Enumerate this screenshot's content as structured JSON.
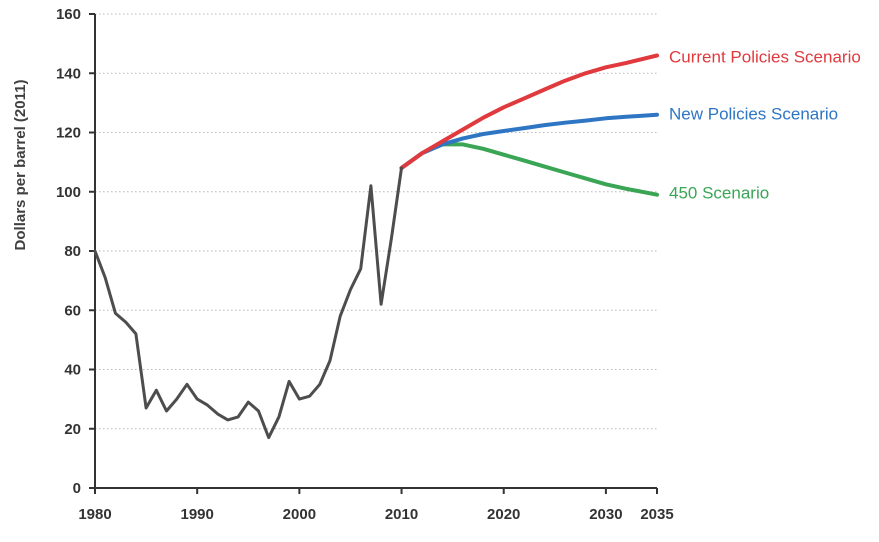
{
  "chart_data": {
    "type": "line",
    "title": "",
    "xlabel": "",
    "ylabel": "Dollars per barrel (2011)",
    "xlim": [
      1980,
      2035
    ],
    "ylim": [
      0,
      160
    ],
    "x_ticks": [
      "1980",
      "1990",
      "2000",
      "2010",
      "2020",
      "2030",
      "2035"
    ],
    "x_tick_values": [
      1980,
      1990,
      2000,
      2010,
      2020,
      2030,
      2035
    ],
    "y_ticks": [
      "0",
      "20",
      "40",
      "60",
      "80",
      "100",
      "120",
      "140",
      "160"
    ],
    "y_tick_values": [
      0,
      20,
      40,
      60,
      80,
      100,
      120,
      140,
      160
    ],
    "grid": true,
    "series": [
      {
        "key": "historical",
        "name": "",
        "color": "#4d4d4d",
        "x": [
          1980,
          1981,
          1982,
          1983,
          1984,
          1985,
          1986,
          1987,
          1988,
          1989,
          1990,
          1991,
          1992,
          1993,
          1994,
          1995,
          1996,
          1997,
          1998,
          1999,
          2000,
          2001,
          2002,
          2003,
          2004,
          2005,
          2006,
          2007,
          2008,
          2009,
          2010
        ],
        "y": [
          80,
          71,
          59,
          56,
          52,
          27,
          33,
          26,
          30,
          35,
          30,
          28,
          25,
          23,
          24,
          29,
          26,
          17,
          24,
          36,
          30,
          31,
          35,
          43,
          58,
          67,
          74,
          102,
          62,
          84,
          108
        ]
      },
      {
        "key": "current",
        "name": "Current Policies Scenario",
        "color": "#e03a3e",
        "x": [
          2010,
          2012,
          2014,
          2016,
          2018,
          2020,
          2022,
          2024,
          2026,
          2028,
          2030,
          2032,
          2035
        ],
        "y": [
          108,
          113,
          117,
          121,
          125,
          128.5,
          131.5,
          134.5,
          137.5,
          140,
          142,
          143.5,
          146
        ]
      },
      {
        "key": "new",
        "name": "New Policies Scenario",
        "color": "#2e75c4",
        "x": [
          2010,
          2012,
          2014,
          2016,
          2018,
          2020,
          2022,
          2024,
          2026,
          2028,
          2030,
          2032,
          2035
        ],
        "y": [
          108,
          113,
          116,
          118,
          119.5,
          120.5,
          121.5,
          122.5,
          123.3,
          124,
          124.8,
          125.3,
          126
        ]
      },
      {
        "key": "s450",
        "name": "450 Scenario",
        "color": "#3aa655",
        "x": [
          2010,
          2012,
          2014,
          2016,
          2018,
          2020,
          2022,
          2024,
          2026,
          2028,
          2030,
          2032,
          2035
        ],
        "y": [
          108,
          113,
          116,
          116,
          114.5,
          112.5,
          110.5,
          108.5,
          106.5,
          104.5,
          102.5,
          101,
          99
        ]
      }
    ]
  }
}
